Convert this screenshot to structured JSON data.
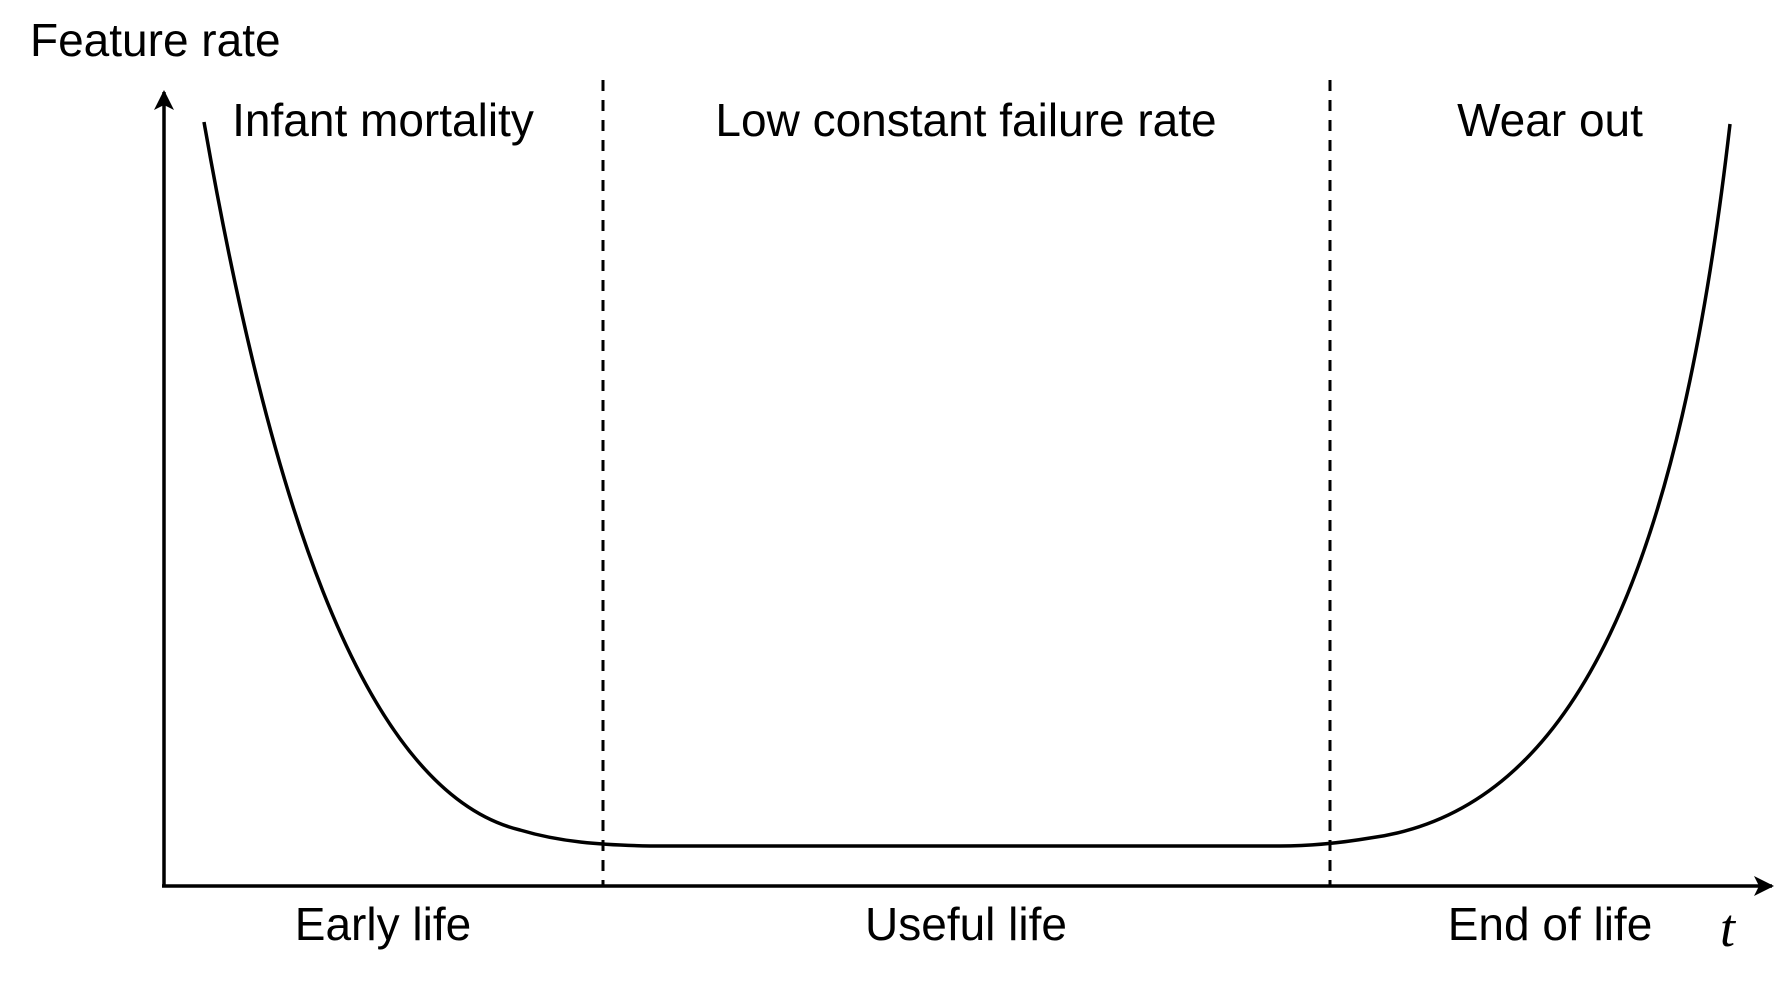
{
  "axes": {
    "y_label": "Feature rate",
    "x_label": "t"
  },
  "phases": {
    "top": [
      "Infant mortality",
      "Low constant failure rate",
      "Wear out"
    ],
    "bottom": [
      "Early life",
      "Useful life",
      "End of life"
    ]
  },
  "colors": {
    "stroke": "#000000",
    "background": "#ffffff"
  }
}
